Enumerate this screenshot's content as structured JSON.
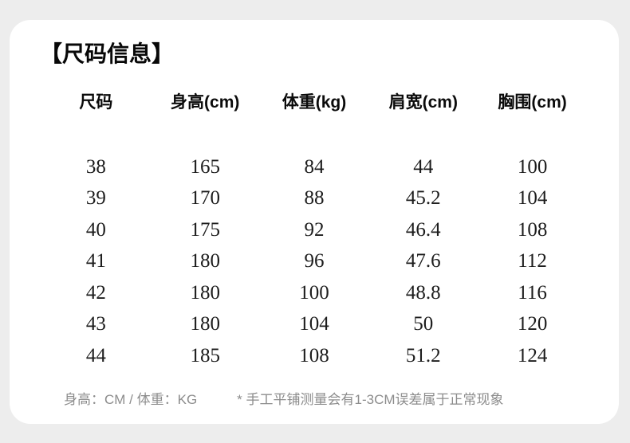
{
  "page": {
    "title": "【尺码信息】",
    "background_color": "#ededed",
    "card_color": "#ffffff",
    "heading_color": "#080808",
    "muted_color": "#8c8c8c"
  },
  "table": {
    "headers": [
      "尺码",
      "身高(cm)",
      "体重(kg)",
      "肩宽(cm)",
      "胸围(cm)"
    ],
    "rows": [
      [
        "38",
        "165",
        "84",
        "44",
        "100"
      ],
      [
        "39",
        "170",
        "88",
        "45.2",
        "104"
      ],
      [
        "40",
        "175",
        "92",
        "46.4",
        "108"
      ],
      [
        "41",
        "180",
        "96",
        "47.6",
        "112"
      ],
      [
        "42",
        "180",
        "100",
        "48.8",
        "116"
      ],
      [
        "43",
        "180",
        "104",
        "50",
        "120"
      ],
      [
        "44",
        "185",
        "108",
        "51.2",
        "124"
      ]
    ]
  },
  "footer": {
    "units_note": "身高：CM / 体重：KG",
    "measure_note": "* 手工平铺测量会有1-3CM误差属于正常现象"
  }
}
